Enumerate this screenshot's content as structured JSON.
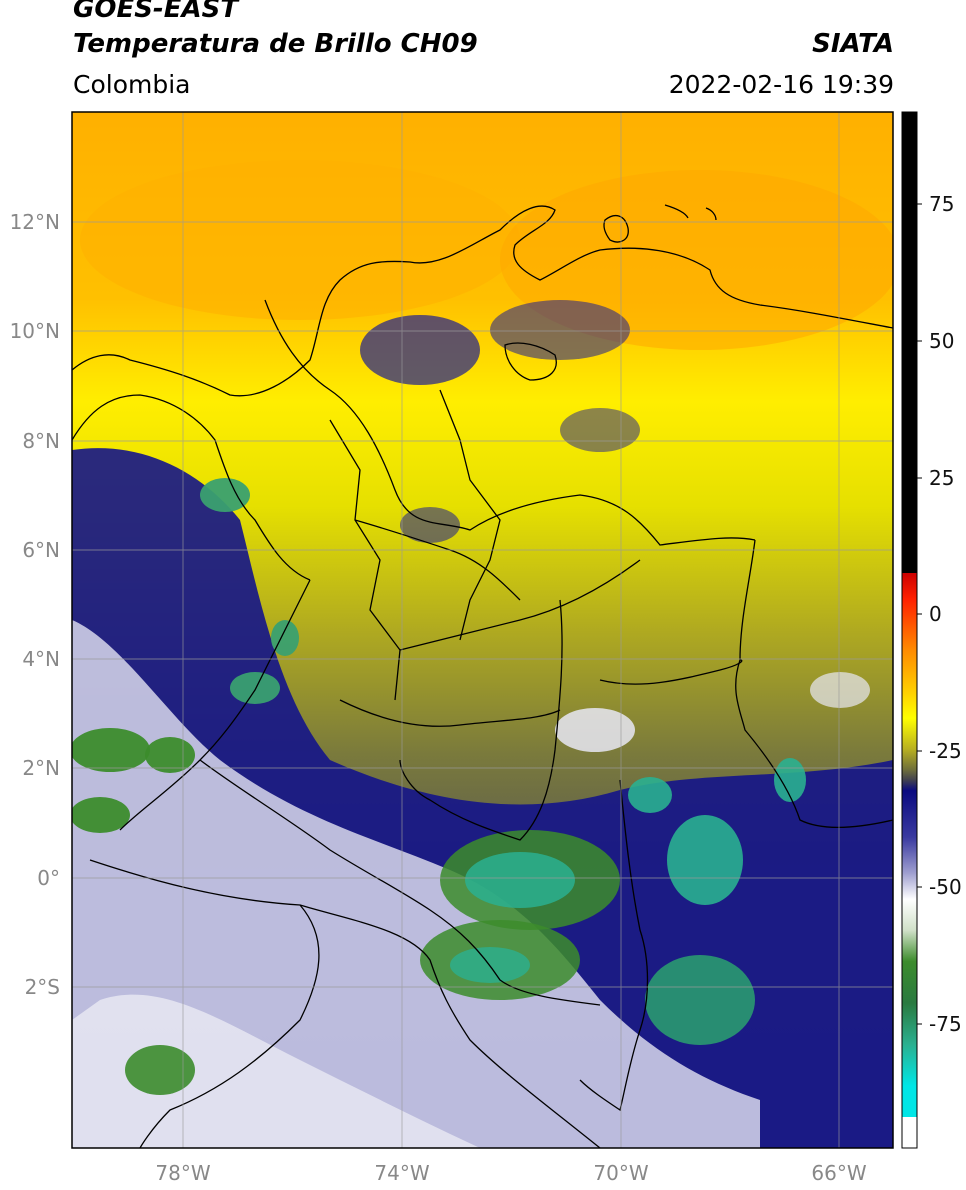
{
  "header": {
    "title_line1": "GOES-EAST",
    "title_line2": "Temperatura de Brillo CH09",
    "brand": "SIATA",
    "region": "Colombia",
    "timestamp": "2022-02-16 19:39"
  },
  "map": {
    "lat_labels": [
      "12°N",
      "10°N",
      "8°N",
      "6°N",
      "4°N",
      "2°N",
      "0°",
      "2°S"
    ],
    "lon_labels": [
      "78°W",
      "74°W",
      "70°W",
      "66°W"
    ]
  },
  "colorbar": {
    "ticks": [
      "75",
      "50",
      "25",
      "0",
      "-25",
      "-50",
      "-75"
    ],
    "colors": {
      "hot": "#000000",
      "red": "#ff0000",
      "orange": "#ff8c00",
      "yellow": "#ffff00",
      "olive": "#6e6e3a",
      "navy": "#0a0a80",
      "white": "#ffffff",
      "green": "#3c8c2c",
      "cyan": "#00e6e6"
    }
  }
}
